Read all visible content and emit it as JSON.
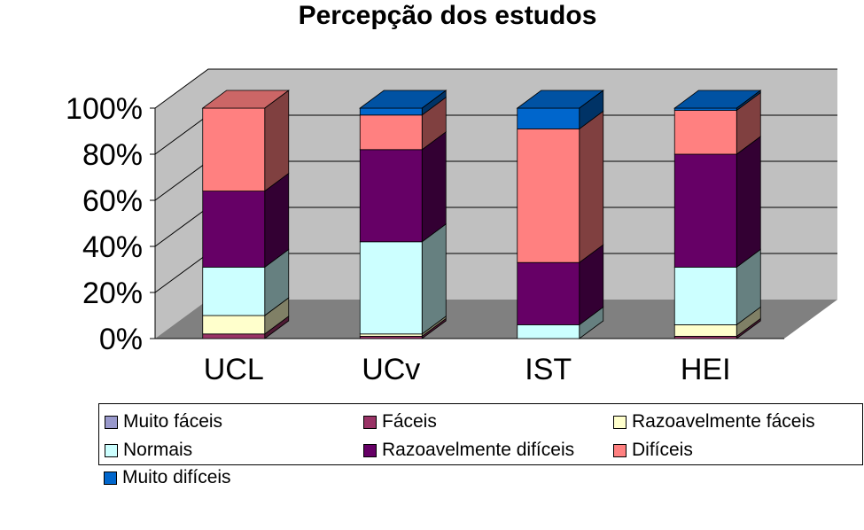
{
  "chart_data": {
    "type": "bar",
    "stacked": true,
    "three_d": true,
    "title": "Percepção dos estudos",
    "categories": [
      "UCL",
      "UCv",
      "IST",
      "HEI"
    ],
    "y_ticks": [
      "0%",
      "20%",
      "40%",
      "60%",
      "80%",
      "100%"
    ],
    "ylim": [
      0,
      100
    ],
    "series": [
      {
        "name": "Muito fáceis",
        "color": "#9999cc",
        "values": [
          0,
          0,
          0,
          0
        ]
      },
      {
        "name": "Fáceis",
        "color": "#993366",
        "values": [
          2,
          1,
          0,
          1
        ]
      },
      {
        "name": "Razoavelmente fáceis",
        "color": "#ffffcc",
        "values": [
          8,
          1,
          0,
          5
        ]
      },
      {
        "name": "Normais",
        "color": "#ccffff",
        "values": [
          21,
          40,
          6,
          25
        ]
      },
      {
        "name": "Razoavelmente difíceis",
        "color": "#660066",
        "values": [
          33,
          40,
          27,
          49
        ]
      },
      {
        "name": "Difíceis",
        "color": "#ff8080",
        "values": [
          36,
          15,
          58,
          19
        ]
      },
      {
        "name": "Muito difíceis",
        "color": "#0066cc",
        "values": [
          0,
          3,
          9,
          1
        ]
      }
    ],
    "grid": true,
    "legend_position": "bottom"
  }
}
